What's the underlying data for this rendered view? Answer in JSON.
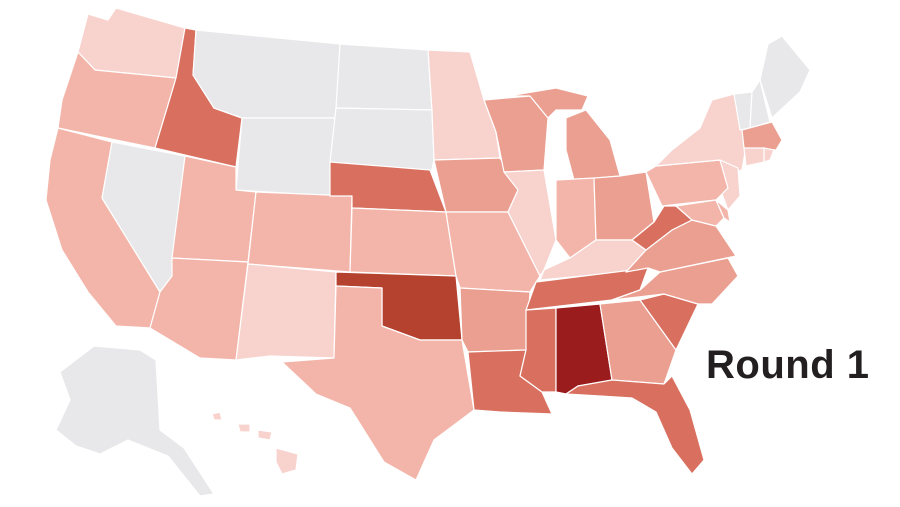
{
  "label": {
    "round": "Round 1"
  },
  "scale": {
    "0": "#e8e8ea",
    "1": "#f8d2cd",
    "2": "#f3b5a9",
    "3": "#eb9f90",
    "4": "#d9705f",
    "5": "#b5412f",
    "6": "#9b1c1c"
  },
  "states": [
    {
      "id": "WA",
      "level": 1
    },
    {
      "id": "OR",
      "level": 2
    },
    {
      "id": "CA",
      "level": 2
    },
    {
      "id": "NV",
      "level": 0
    },
    {
      "id": "ID",
      "level": 4
    },
    {
      "id": "MT",
      "level": 0
    },
    {
      "id": "WY",
      "level": 0
    },
    {
      "id": "UT",
      "level": 2
    },
    {
      "id": "AZ",
      "level": 2
    },
    {
      "id": "CO",
      "level": 2
    },
    {
      "id": "NM",
      "level": 1
    },
    {
      "id": "ND",
      "level": 0
    },
    {
      "id": "SD",
      "level": 0
    },
    {
      "id": "NE",
      "level": 4
    },
    {
      "id": "KS",
      "level": 2
    },
    {
      "id": "OK",
      "level": 5
    },
    {
      "id": "TX",
      "level": 2
    },
    {
      "id": "MN",
      "level": 1
    },
    {
      "id": "IA",
      "level": 3
    },
    {
      "id": "MO",
      "level": 2
    },
    {
      "id": "AR",
      "level": 3
    },
    {
      "id": "LA",
      "level": 4
    },
    {
      "id": "WI",
      "level": 3
    },
    {
      "id": "IL",
      "level": 1
    },
    {
      "id": "MI",
      "level": 3
    },
    {
      "id": "IN",
      "level": 2
    },
    {
      "id": "OH",
      "level": 3
    },
    {
      "id": "KY",
      "level": 1
    },
    {
      "id": "TN",
      "level": 4
    },
    {
      "id": "MS",
      "level": 4
    },
    {
      "id": "AL",
      "level": 6
    },
    {
      "id": "GA",
      "level": 3
    },
    {
      "id": "FL",
      "level": 4
    },
    {
      "id": "SC",
      "level": 4
    },
    {
      "id": "NC",
      "level": 3
    },
    {
      "id": "VA",
      "level": 3
    },
    {
      "id": "WV",
      "level": 4
    },
    {
      "id": "PA",
      "level": 2
    },
    {
      "id": "NY",
      "level": 1
    },
    {
      "id": "NJ",
      "level": 1
    },
    {
      "id": "MD",
      "level": 2
    },
    {
      "id": "DE",
      "level": 2
    },
    {
      "id": "VT",
      "level": 0
    },
    {
      "id": "NH",
      "level": 0
    },
    {
      "id": "ME",
      "level": 0
    },
    {
      "id": "MA",
      "level": 3
    },
    {
      "id": "CT",
      "level": 1
    },
    {
      "id": "RI",
      "level": 1
    },
    {
      "id": "AK",
      "level": 0
    },
    {
      "id": "HI",
      "level": 1
    }
  ]
}
